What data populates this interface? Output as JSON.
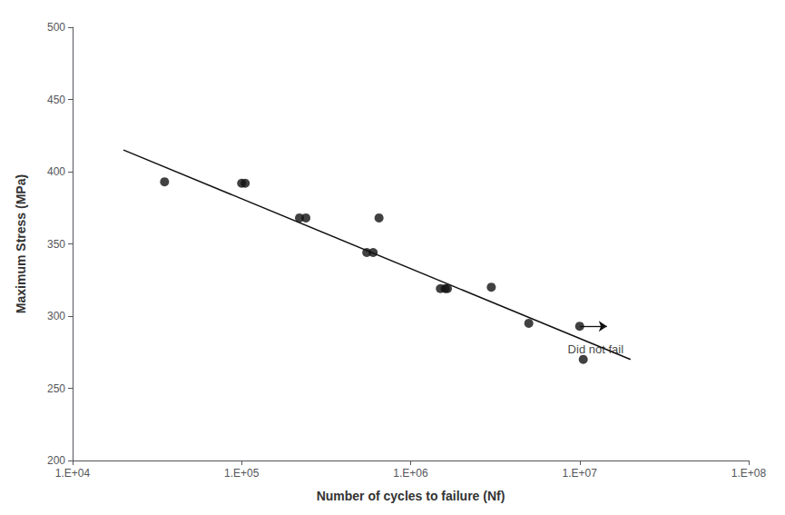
{
  "chart_data": {
    "type": "scatter",
    "xlabel": "Number of cycles to failure (Nf)",
    "ylabel": "Maximum Stress (MPa)",
    "log": "x",
    "grid": false,
    "xlim": [
      10000,
      100000000
    ],
    "xticks": [
      {
        "value": 10000,
        "label": "1.E+04"
      },
      {
        "value": 100000,
        "label": "1.E+05"
      },
      {
        "value": 1000000,
        "label": "1.E+06"
      },
      {
        "value": 10000000,
        "label": "1.E+07"
      },
      {
        "value": 100000000,
        "label": "1.E+08"
      }
    ],
    "ylim": [
      200,
      500
    ],
    "yticks": [
      200,
      250,
      300,
      350,
      400,
      450,
      500
    ],
    "series": [
      {
        "type": "line",
        "color": "#111111",
        "x": [
          20000,
          20000000
        ],
        "values": [
          415,
          270
        ]
      },
      {
        "type": "scatter",
        "color": "#111111",
        "x": [
          35000,
          100000,
          105000,
          220000,
          240000,
          650000,
          550000,
          600000,
          1500000,
          1600000,
          1650000,
          3000000,
          5000000,
          10000000,
          10500000
        ],
        "values": [
          393,
          392,
          392,
          368,
          368,
          368,
          344,
          344,
          319,
          319,
          319,
          320,
          295,
          293,
          270
        ]
      }
    ],
    "annotations": [
      {
        "type": "arrow",
        "color": "#111111",
        "x": 10000000,
        "y": 293,
        "x_end": 14500000,
        "y_end": 293
      },
      {
        "type": "text",
        "color": "#111111",
        "text": "Did not fail",
        "x": 8500000,
        "y": 281
      }
    ]
  }
}
